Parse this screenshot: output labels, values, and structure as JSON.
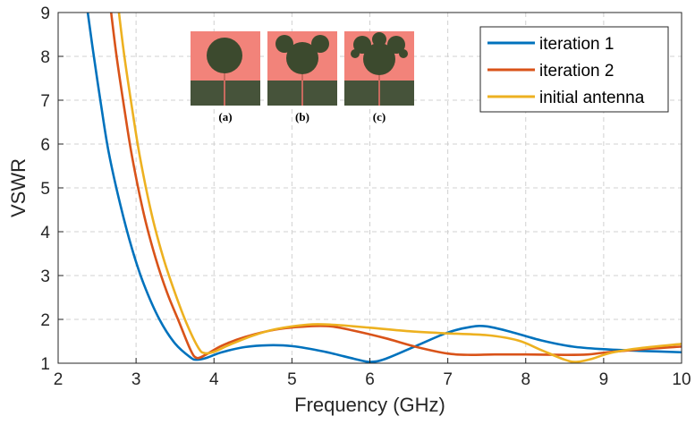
{
  "chart_data": {
    "type": "line",
    "title": "",
    "xlabel": "Frequency (GHz)",
    "ylabel": "VSWR",
    "xlim": [
      2,
      10
    ],
    "ylim": [
      1,
      9
    ],
    "xticks": [
      "2",
      "3",
      "4",
      "5",
      "6",
      "7",
      "8",
      "9",
      "10"
    ],
    "yticks": [
      "1",
      "2",
      "3",
      "4",
      "5",
      "6",
      "7",
      "8",
      "9"
    ],
    "grid": true,
    "legend_position": "top-right",
    "series": [
      {
        "name": "iteration 1",
        "color": "#0072BD",
        "points": [
          [
            2.38,
            9.0
          ],
          [
            2.45,
            8.1
          ],
          [
            2.55,
            6.9
          ],
          [
            2.65,
            5.8
          ],
          [
            2.8,
            4.6
          ],
          [
            2.95,
            3.6
          ],
          [
            3.1,
            2.8
          ],
          [
            3.3,
            2.0
          ],
          [
            3.5,
            1.45
          ],
          [
            3.7,
            1.13
          ],
          [
            3.78,
            1.08
          ],
          [
            3.9,
            1.12
          ],
          [
            4.1,
            1.25
          ],
          [
            4.4,
            1.37
          ],
          [
            4.7,
            1.41
          ],
          [
            5.0,
            1.39
          ],
          [
            5.4,
            1.27
          ],
          [
            5.8,
            1.1
          ],
          [
            6.0,
            1.03
          ],
          [
            6.2,
            1.1
          ],
          [
            6.6,
            1.4
          ],
          [
            7.0,
            1.7
          ],
          [
            7.3,
            1.83
          ],
          [
            7.5,
            1.84
          ],
          [
            7.8,
            1.72
          ],
          [
            8.2,
            1.52
          ],
          [
            8.6,
            1.38
          ],
          [
            9.0,
            1.32
          ],
          [
            9.5,
            1.28
          ],
          [
            10.0,
            1.25
          ]
        ]
      },
      {
        "name": "iteration 2",
        "color": "#D95319",
        "points": [
          [
            2.68,
            9.0
          ],
          [
            2.75,
            8.0
          ],
          [
            2.85,
            6.8
          ],
          [
            2.95,
            5.7
          ],
          [
            3.1,
            4.4
          ],
          [
            3.25,
            3.4
          ],
          [
            3.4,
            2.6
          ],
          [
            3.55,
            1.95
          ],
          [
            3.7,
            1.3
          ],
          [
            3.78,
            1.12
          ],
          [
            3.9,
            1.2
          ],
          [
            4.1,
            1.4
          ],
          [
            4.4,
            1.6
          ],
          [
            4.8,
            1.77
          ],
          [
            5.2,
            1.84
          ],
          [
            5.5,
            1.84
          ],
          [
            5.8,
            1.74
          ],
          [
            6.2,
            1.57
          ],
          [
            6.6,
            1.37
          ],
          [
            7.0,
            1.22
          ],
          [
            7.3,
            1.19
          ],
          [
            7.6,
            1.2
          ],
          [
            8.0,
            1.2
          ],
          [
            8.5,
            1.19
          ],
          [
            8.8,
            1.2
          ],
          [
            9.0,
            1.24
          ],
          [
            9.5,
            1.32
          ],
          [
            10.0,
            1.38
          ]
        ]
      },
      {
        "name": "initial antenna",
        "color": "#EDB120",
        "points": [
          [
            2.78,
            9.0
          ],
          [
            2.85,
            8.0
          ],
          [
            2.95,
            6.8
          ],
          [
            3.05,
            5.7
          ],
          [
            3.2,
            4.4
          ],
          [
            3.35,
            3.4
          ],
          [
            3.5,
            2.6
          ],
          [
            3.65,
            1.9
          ],
          [
            3.8,
            1.35
          ],
          [
            3.88,
            1.23
          ],
          [
            4.0,
            1.26
          ],
          [
            4.2,
            1.42
          ],
          [
            4.5,
            1.63
          ],
          [
            4.8,
            1.78
          ],
          [
            5.2,
            1.88
          ],
          [
            5.5,
            1.88
          ],
          [
            6.0,
            1.81
          ],
          [
            6.5,
            1.73
          ],
          [
            7.0,
            1.68
          ],
          [
            7.5,
            1.64
          ],
          [
            7.9,
            1.52
          ],
          [
            8.2,
            1.3
          ],
          [
            8.5,
            1.08
          ],
          [
            8.65,
            1.03
          ],
          [
            8.85,
            1.1
          ],
          [
            9.1,
            1.24
          ],
          [
            9.5,
            1.35
          ],
          [
            10.0,
            1.44
          ]
        ]
      }
    ],
    "inset": {
      "captions": [
        "(a)",
        "(b)",
        "(c)"
      ],
      "colors": {
        "substrate": "#F2837A",
        "patch": "#3C4A2E",
        "ground": "#46533A"
      }
    }
  }
}
